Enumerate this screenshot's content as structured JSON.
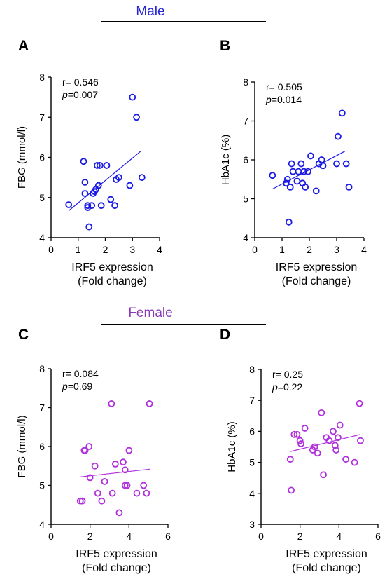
{
  "groups": [
    {
      "label": "Male",
      "color": "#2424d6"
    },
    {
      "label": "Female",
      "color": "#8a3bb8"
    }
  ],
  "chart_data": [
    {
      "panel": "A",
      "type": "scatter",
      "color": "#1a1ae6",
      "ylabel": "FBG (mmol/l)",
      "xlabel": [
        "IRF5  expression",
        "(Fold change)"
      ],
      "xlim": [
        0,
        4
      ],
      "ylim": [
        4,
        8
      ],
      "xticks": [
        0,
        1,
        2,
        3,
        4
      ],
      "yticks": [
        4,
        5,
        6,
        7,
        8
      ],
      "stat_r": "r= 0.546",
      "stat_p_label": "p",
      "stat_p_value": "=0.007",
      "fit": [
        [
          0.65,
          4.67
        ],
        [
          3.3,
          6.15
        ]
      ],
      "points": [
        [
          0.65,
          4.82
        ],
        [
          1.2,
          5.9
        ],
        [
          1.25,
          5.38
        ],
        [
          1.25,
          5.1
        ],
        [
          1.35,
          4.8
        ],
        [
          1.35,
          4.75
        ],
        [
          1.4,
          4.27
        ],
        [
          1.5,
          4.8
        ],
        [
          1.55,
          5.1
        ],
        [
          1.6,
          5.15
        ],
        [
          1.65,
          5.2
        ],
        [
          1.7,
          5.8
        ],
        [
          1.75,
          5.3
        ],
        [
          1.8,
          5.8
        ],
        [
          1.85,
          4.8
        ],
        [
          2.05,
          5.8
        ],
        [
          2.2,
          4.95
        ],
        [
          2.35,
          4.8
        ],
        [
          2.4,
          5.45
        ],
        [
          2.5,
          5.5
        ],
        [
          2.9,
          5.3
        ],
        [
          3.0,
          7.5
        ],
        [
          3.15,
          7.0
        ],
        [
          3.35,
          5.5
        ]
      ]
    },
    {
      "panel": "B",
      "type": "scatter",
      "color": "#1a1ae6",
      "ylabel": "HbA1c (%)",
      "xlabel": [
        "IRF5  expression",
        "(Fold change)"
      ],
      "xlim": [
        0,
        4
      ],
      "ylim": [
        4,
        8
      ],
      "xticks": [
        0,
        1,
        2,
        3,
        4
      ],
      "yticks": [
        4,
        5,
        6,
        7,
        8
      ],
      "stat_r": "r= 0.505",
      "stat_p_label": "p",
      "stat_p_value": "=0.014",
      "fit": [
        [
          0.65,
          5.25
        ],
        [
          3.3,
          6.22
        ]
      ],
      "points": [
        [
          0.65,
          5.6
        ],
        [
          1.15,
          5.4
        ],
        [
          1.2,
          5.5
        ],
        [
          1.25,
          4.4
        ],
        [
          1.3,
          5.3
        ],
        [
          1.35,
          5.9
        ],
        [
          1.4,
          5.7
        ],
        [
          1.55,
          5.45
        ],
        [
          1.6,
          5.7
        ],
        [
          1.7,
          5.9
        ],
        [
          1.75,
          5.4
        ],
        [
          1.8,
          5.7
        ],
        [
          1.85,
          5.3
        ],
        [
          1.95,
          5.7
        ],
        [
          2.05,
          6.1
        ],
        [
          2.25,
          5.2
        ],
        [
          2.35,
          5.9
        ],
        [
          2.45,
          6.0
        ],
        [
          2.5,
          5.85
        ],
        [
          3.0,
          5.9
        ],
        [
          3.05,
          6.6
        ],
        [
          3.2,
          7.2
        ],
        [
          3.35,
          5.9
        ],
        [
          3.45,
          5.3
        ]
      ]
    },
    {
      "panel": "C",
      "type": "scatter",
      "color": "#b030dc",
      "ylabel": "FBG (mmol/l)",
      "xlabel": [
        "IRF5  expression",
        "(Fold change)"
      ],
      "xlim": [
        0,
        6
      ],
      "ylim": [
        4,
        8
      ],
      "xticks": [
        0,
        2,
        4,
        6
      ],
      "yticks": [
        4,
        5,
        6,
        7,
        8
      ],
      "stat_r": "r= 0.084",
      "stat_p_label": "p",
      "stat_p_value": "=0.69",
      "fit": [
        [
          1.5,
          5.22
        ],
        [
          5.1,
          5.42
        ]
      ],
      "points": [
        [
          1.5,
          4.6
        ],
        [
          1.6,
          4.6
        ],
        [
          1.7,
          5.9
        ],
        [
          1.75,
          5.9
        ],
        [
          1.95,
          6.0
        ],
        [
          2.0,
          5.2
        ],
        [
          2.25,
          5.5
        ],
        [
          2.4,
          4.8
        ],
        [
          2.6,
          4.6
        ],
        [
          2.75,
          5.1
        ],
        [
          3.1,
          7.1
        ],
        [
          3.15,
          4.8
        ],
        [
          3.3,
          5.55
        ],
        [
          3.5,
          4.3
        ],
        [
          3.7,
          5.6
        ],
        [
          3.8,
          5.0
        ],
        [
          3.8,
          5.4
        ],
        [
          3.9,
          5.0
        ],
        [
          4.0,
          5.9
        ],
        [
          4.4,
          4.8
        ],
        [
          4.75,
          5.0
        ],
        [
          4.9,
          4.8
        ],
        [
          5.05,
          7.1
        ]
      ]
    },
    {
      "panel": "D",
      "type": "scatter",
      "color": "#b030dc",
      "ylabel": "HbA1c (%)",
      "xlabel": [
        "IRF5  expression",
        "(Fold change)"
      ],
      "xlim": [
        0,
        6
      ],
      "ylim": [
        3,
        8
      ],
      "xticks": [
        0,
        2,
        4,
        6
      ],
      "yticks": [
        3,
        4,
        5,
        6,
        7,
        8
      ],
      "stat_r": "r= 0.25",
      "stat_p_label": "p",
      "stat_p_value": "=0.22",
      "fit": [
        [
          1.5,
          5.35
        ],
        [
          5.1,
          5.9
        ]
      ],
      "points": [
        [
          1.5,
          5.1
        ],
        [
          1.55,
          4.1
        ],
        [
          1.7,
          5.9
        ],
        [
          1.85,
          5.9
        ],
        [
          2.0,
          5.7
        ],
        [
          2.05,
          5.6
        ],
        [
          2.25,
          6.1
        ],
        [
          2.65,
          5.4
        ],
        [
          2.75,
          5.5
        ],
        [
          2.9,
          5.3
        ],
        [
          3.1,
          6.6
        ],
        [
          3.2,
          4.6
        ],
        [
          3.35,
          5.8
        ],
        [
          3.5,
          5.7
        ],
        [
          3.7,
          6.0
        ],
        [
          3.8,
          5.55
        ],
        [
          3.85,
          5.4
        ],
        [
          3.95,
          5.8
        ],
        [
          4.05,
          6.2
        ],
        [
          4.35,
          5.1
        ],
        [
          4.8,
          5.0
        ],
        [
          5.05,
          6.9
        ],
        [
          5.1,
          5.7
        ]
      ]
    }
  ]
}
